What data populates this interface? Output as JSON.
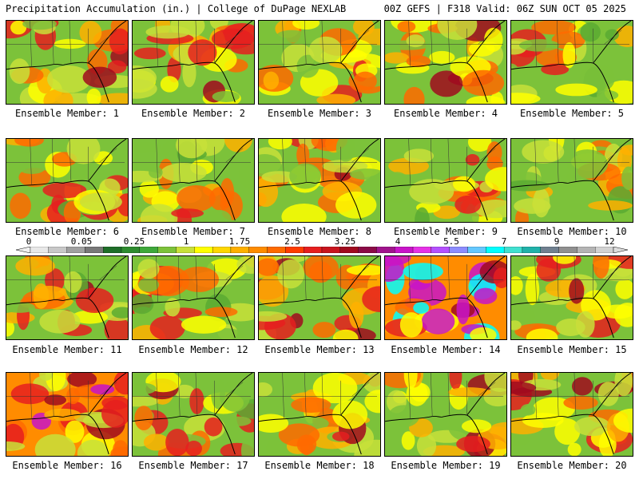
{
  "header": {
    "left": "Precipitation Accumulation (in.) | College of DuPage NEXLAB",
    "right": "00Z GEFS | F318 Valid: 06Z SUN OCT 05 2025"
  },
  "caption_prefix": "Ensemble Member: ",
  "members": [
    {
      "number": "1",
      "label": "Ensemble Member: 1",
      "wetness": 0.45
    },
    {
      "number": "2",
      "label": "Ensemble Member: 2",
      "wetness": 0.55
    },
    {
      "number": "3",
      "label": "Ensemble Member: 3",
      "wetness": 0.4
    },
    {
      "number": "4",
      "label": "Ensemble Member: 4",
      "wetness": 0.55
    },
    {
      "number": "5",
      "label": "Ensemble Member: 5",
      "wetness": 0.3
    },
    {
      "number": "6",
      "label": "Ensemble Member: 6",
      "wetness": 0.35
    },
    {
      "number": "7",
      "label": "Ensemble Member: 7",
      "wetness": 0.35
    },
    {
      "number": "8",
      "label": "Ensemble Member: 8",
      "wetness": 0.5
    },
    {
      "number": "9",
      "label": "Ensemble Member: 9",
      "wetness": 0.35
    },
    {
      "number": "10",
      "label": "Ensemble Member: 10",
      "wetness": 0.2
    },
    {
      "number": "11",
      "label": "Ensemble Member: 11",
      "wetness": 0.4
    },
    {
      "number": "12",
      "label": "Ensemble Member: 12",
      "wetness": 0.3
    },
    {
      "number": "13",
      "label": "Ensemble Member: 13",
      "wetness": 0.6
    },
    {
      "number": "14",
      "label": "Ensemble Member: 14",
      "wetness": 0.9
    },
    {
      "number": "15",
      "label": "Ensemble Member: 15",
      "wetness": 0.6
    },
    {
      "number": "16",
      "label": "Ensemble Member: 16",
      "wetness": 0.7
    },
    {
      "number": "17",
      "label": "Ensemble Member: 17",
      "wetness": 0.4
    },
    {
      "number": "18",
      "label": "Ensemble Member: 18",
      "wetness": 0.55
    },
    {
      "number": "19",
      "label": "Ensemble Member: 19",
      "wetness": 0.55
    },
    {
      "number": "20",
      "label": "Ensemble Member: 20",
      "wetness": 0.55
    }
  ],
  "colorbar": {
    "tick_labels": [
      "0",
      "0.05",
      "0.25",
      "1",
      "1.75",
      "2.5",
      "3.25",
      "4",
      "5.5",
      "7",
      "9",
      "12"
    ],
    "colors": [
      "#e8e8e8",
      "#c8c8c8",
      "#a0a0a0",
      "#787878",
      "#1e6e28",
      "#2e8b2e",
      "#3ea83a",
      "#7cc23a",
      "#c8e03a",
      "#ffff00",
      "#ffd700",
      "#ffb000",
      "#ff8c00",
      "#ff6a00",
      "#ff3c00",
      "#e61e1e",
      "#c8141e",
      "#a00a1e",
      "#8b0a46",
      "#a0148c",
      "#c814c8",
      "#e632e6",
      "#b450ff",
      "#8c8cff",
      "#64c8ff",
      "#00ffff",
      "#40e0d0",
      "#20b2aa",
      "#708090",
      "#909090",
      "#b4b4b4",
      "#d2d2d2"
    ]
  }
}
